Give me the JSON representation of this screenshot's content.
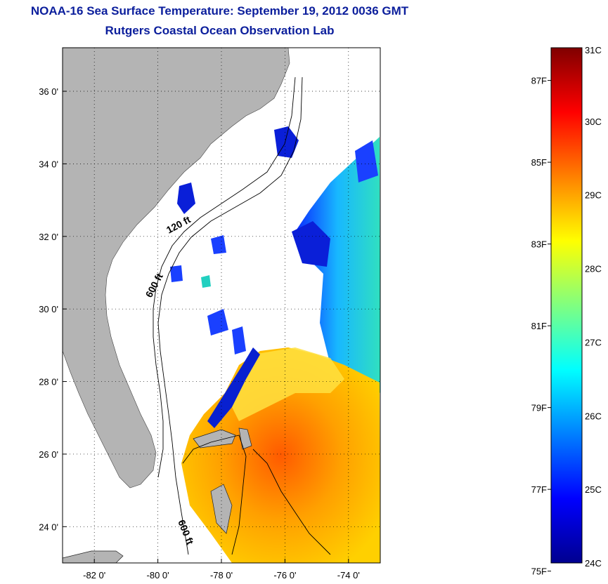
{
  "title_line1": "NOAA-16 Sea Surface Temperature:  September 19, 2012 0036 GMT",
  "title_line2": "Rutgers Coastal Ocean Observation Lab",
  "map": {
    "lat_ticks": [
      {
        "value": 36,
        "label": "36 0'"
      },
      {
        "value": 34,
        "label": "34 0'"
      },
      {
        "value": 32,
        "label": "32 0'"
      },
      {
        "value": 30,
        "label": "30 0'"
      },
      {
        "value": 28,
        "label": "28 0'"
      },
      {
        "value": 26,
        "label": "26 0'"
      },
      {
        "value": 24,
        "label": "24 0'"
      }
    ],
    "lon_ticks": [
      {
        "value": -82,
        "label": "-82 0'"
      },
      {
        "value": -80,
        "label": "-80 0'"
      },
      {
        "value": -78,
        "label": "-78 0'"
      },
      {
        "value": -76,
        "label": "-76 0'"
      },
      {
        "value": -74,
        "label": "-74 0'"
      }
    ],
    "lat_range": [
      23,
      37.2
    ],
    "lon_range": [
      -83,
      -73
    ],
    "contour_labels": [
      "120 ft",
      "600 ft",
      "600 ft"
    ],
    "land_color": "#b4b4b4"
  },
  "colorbar": {
    "celsius_range": [
      24,
      31
    ],
    "celsius_labels": [
      "31C",
      "30C",
      "29C",
      "28C",
      "27C",
      "26C",
      "25C",
      "24C"
    ],
    "fahrenheit_labels": [
      {
        "value": 87,
        "label": "87F"
      },
      {
        "value": 85,
        "label": "85F"
      },
      {
        "value": 83,
        "label": "83F"
      },
      {
        "value": 81,
        "label": "81F"
      },
      {
        "value": 79,
        "label": "79F"
      },
      {
        "value": 77,
        "label": "77F"
      },
      {
        "value": 75,
        "label": "75F"
      }
    ],
    "colormap": [
      "#00008f",
      "#0000ff",
      "#0080ff",
      "#00ffff",
      "#80ff80",
      "#ffff00",
      "#ff8000",
      "#ff0000",
      "#800000"
    ]
  }
}
